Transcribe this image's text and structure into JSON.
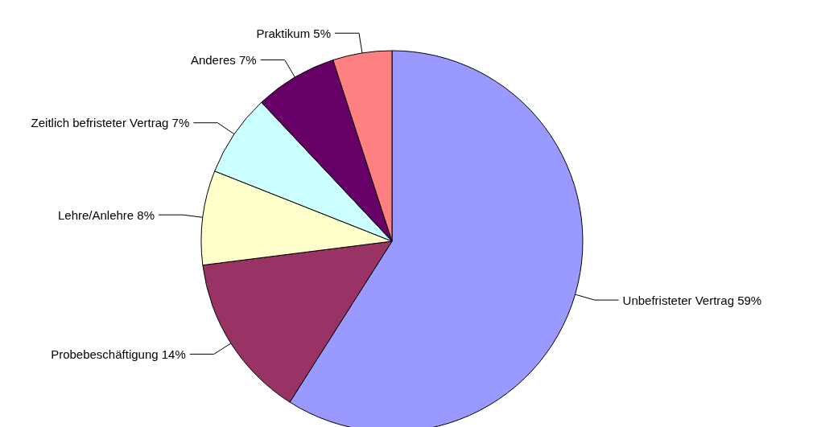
{
  "chart_data": {
    "type": "pie",
    "categories": [
      "Unbefristeter Vertrag",
      "Probebeschäftigung",
      "Lehre/Anlehre",
      "Zeitlich befristeter Vertrag",
      "Anderes",
      "Praktikum"
    ],
    "values": [
      59,
      14,
      8,
      7,
      7,
      5
    ],
    "value_labels": [
      "59%",
      "14%",
      "8%",
      "7%",
      "7%",
      "5%"
    ],
    "colors": [
      "#9999ff",
      "#993366",
      "#ffffcc",
      "#ccffff",
      "#660066",
      "#ff8080"
    ],
    "legend": false
  }
}
